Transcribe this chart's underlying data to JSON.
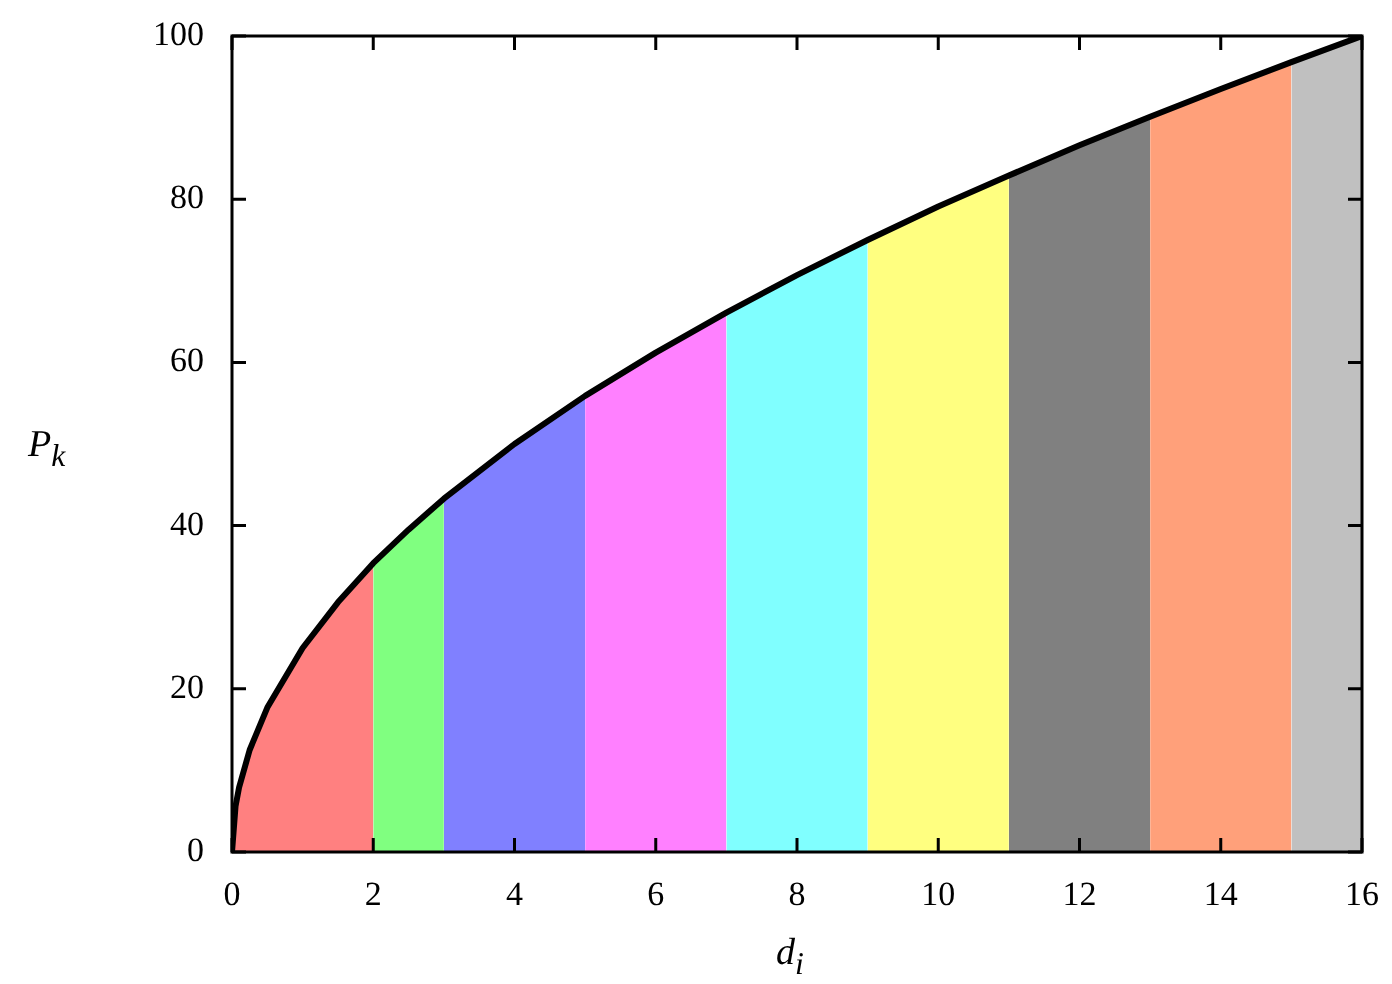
{
  "chart_data": {
    "type": "area",
    "xlabel": "d$_{i}$",
    "ylabel": "P$_{k}$",
    "xlim": [
      0,
      16
    ],
    "ylim": [
      0,
      100
    ],
    "xticks": [
      0,
      2,
      4,
      6,
      8,
      10,
      12,
      14,
      16
    ],
    "yticks": [
      0,
      20,
      40,
      60,
      80,
      100
    ],
    "series": [
      {
        "type": "area",
        "color": "#ff8080",
        "x": [
          0,
          0.05,
          0.1,
          0.25,
          0.5,
          1,
          1.5,
          2
        ],
        "values": [
          0,
          5.6,
          7.9,
          12.5,
          17.7,
          25,
          30.6,
          35.4
        ]
      },
      {
        "type": "area",
        "color": "#80ff80",
        "x": [
          2,
          2.5,
          3
        ],
        "values": [
          35.4,
          39.5,
          43.3
        ]
      },
      {
        "type": "area",
        "color": "#8080ff",
        "x": [
          3,
          4,
          5
        ],
        "values": [
          43.3,
          50,
          55.9
        ]
      },
      {
        "type": "area",
        "color": "#ff80ff",
        "x": [
          5,
          6,
          7
        ],
        "values": [
          55.9,
          61.2,
          66.1
        ]
      },
      {
        "type": "area",
        "color": "#80ffff",
        "x": [
          7,
          8,
          9
        ],
        "values": [
          66.1,
          70.7,
          75
        ]
      },
      {
        "type": "area",
        "color": "#ffff80",
        "x": [
          9,
          10,
          11
        ],
        "values": [
          75,
          79.1,
          82.9
        ]
      },
      {
        "type": "area",
        "color": "#808080",
        "x": [
          11,
          12,
          13
        ],
        "values": [
          82.9,
          86.6,
          90.1
        ]
      },
      {
        "type": "area",
        "color": "#ffa07a",
        "x": [
          13,
          14,
          15
        ],
        "values": [
          90.1,
          93.5,
          96.8
        ]
      },
      {
        "type": "area",
        "color": "#c0c0c0",
        "x": [
          15,
          16
        ],
        "values": [
          96.8,
          100
        ]
      },
      {
        "type": "line",
        "color": "#000000",
        "x": [
          0,
          0.05,
          0.1,
          0.25,
          0.5,
          1,
          1.5,
          2,
          2.5,
          3,
          4,
          5,
          6,
          7,
          8,
          9,
          10,
          11,
          12,
          13,
          14,
          15,
          16
        ],
        "values": [
          0,
          5.6,
          7.9,
          12.5,
          17.7,
          25,
          30.6,
          35.4,
          39.5,
          43.3,
          50,
          55.9,
          61.2,
          66.1,
          70.7,
          75,
          79.1,
          82.9,
          86.6,
          90.1,
          93.5,
          96.8,
          100
        ]
      }
    ]
  }
}
